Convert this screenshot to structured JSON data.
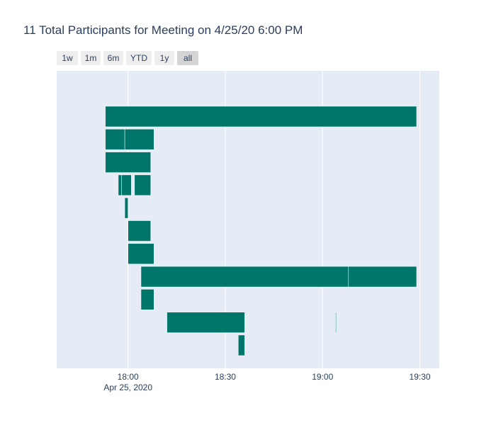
{
  "chart_data": {
    "type": "timeline",
    "title": "11 Total Participants for Meeting on 4/25/20 6:00 PM",
    "range_selector": {
      "buttons": [
        "1w",
        "1m",
        "6m",
        "YTD",
        "1y",
        "all"
      ],
      "active": "all"
    },
    "x_axis": {
      "ticks": [
        "18:00",
        "18:30",
        "19:00",
        "19:30"
      ],
      "tick_minutes": [
        0,
        30,
        60,
        90
      ],
      "date_label": "Apr 25, 2020",
      "range_minutes": [
        -22,
        96
      ],
      "grid": true
    },
    "y_axis": {
      "visible": false,
      "rows": 11
    },
    "series": [
      {
        "color": "#00756a",
        "participants": [
          {
            "segments": [
              {
                "start": "17:53",
                "end": "19:29"
              }
            ]
          },
          {
            "segments": [
              {
                "start": "17:53",
                "end": "17:59"
              },
              {
                "start": "17:59",
                "end": "18:08"
              }
            ]
          },
          {
            "segments": [
              {
                "start": "17:53",
                "end": "18:07"
              }
            ]
          },
          {
            "segments": [
              {
                "start": "17:57",
                "end": "17:58"
              },
              {
                "start": "17:58",
                "end": "18:01"
              },
              {
                "start": "18:02",
                "end": "18:07"
              }
            ]
          },
          {
            "segments": [
              {
                "start": "17:59",
                "end": "18:00"
              }
            ]
          },
          {
            "segments": [
              {
                "start": "18:00",
                "end": "18:07"
              }
            ]
          },
          {
            "segments": [
              {
                "start": "18:00",
                "end": "18:08"
              }
            ]
          },
          {
            "segments": [
              {
                "start": "18:04",
                "end": "19:08"
              },
              {
                "start": "19:08",
                "end": "19:29"
              }
            ]
          },
          {
            "segments": [
              {
                "start": "18:04",
                "end": "18:08"
              }
            ]
          },
          {
            "segments": [
              {
                "start": "18:12",
                "end": "18:36"
              },
              {
                "start": "19:04",
                "end": "19:04"
              }
            ]
          },
          {
            "segments": [
              {
                "start": "18:34",
                "end": "18:36"
              }
            ]
          }
        ]
      }
    ],
    "bar_color": "#00756a",
    "plot_background": "#e5ecf6",
    "grid_color": "#ffffff"
  }
}
